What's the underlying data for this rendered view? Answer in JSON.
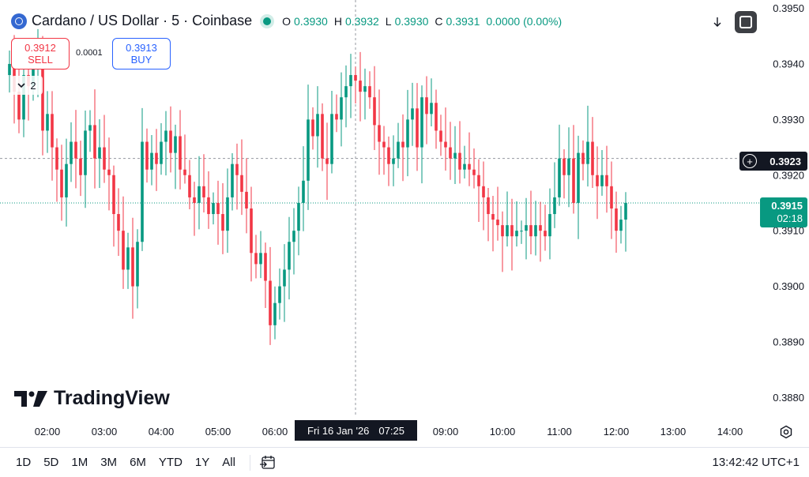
{
  "legend": {
    "title": "Cardano / US Dollar · 5 · Coinbase",
    "open_key": "O",
    "open": "0.3930",
    "high_key": "H",
    "high": "0.3932",
    "low_key": "L",
    "low": "0.3930",
    "close_key": "C",
    "close": "0.3931",
    "change": "0.0000 (0.00%)"
  },
  "trade": {
    "sell_price": "0.3912",
    "sell_label": "SELL",
    "buy_price": "0.3913",
    "buy_label": "BUY",
    "spread": "0.0001"
  },
  "collapse_count": "2",
  "crosshair": {
    "price": "0.3923",
    "time_date": "Fri 16 Jan '26",
    "time_clock": "07:25"
  },
  "last_price": {
    "price": "0.3915",
    "countdown": "02:18"
  },
  "watermark": "TradingView",
  "ranges": [
    "1D",
    "5D",
    "1M",
    "3M",
    "6M",
    "YTD",
    "1Y",
    "All"
  ],
  "clock": "13:42:42 UTC+1",
  "colors": {
    "up": "#089981",
    "down": "#f23645",
    "crosshair": "#131722",
    "last_line": "#089981"
  },
  "chart_data": {
    "type": "candlestick",
    "y_ticks": [
      "0.3950",
      "0.3940",
      "0.3930",
      "0.3920",
      "0.3910",
      "0.3900",
      "0.3890",
      "0.3880"
    ],
    "x_ticks": [
      "02:00",
      "03:00",
      "04:00",
      "05:00",
      "06:00",
      "09:00",
      "10:00",
      "11:00",
      "12:00",
      "13:00",
      "14:00"
    ],
    "ylim": [
      0.38765,
      0.39515
    ],
    "interval_minutes": 5,
    "first_candle_time": "01:20",
    "last_price": 0.3915,
    "crosshair_price": 0.3923,
    "grid": false,
    "candles_close": [
      0.394,
      0.3935,
      0.393,
      0.3938,
      0.3936,
      0.3939,
      0.3941,
      0.3928,
      0.3931,
      0.3925,
      0.3921,
      0.3916,
      0.3922,
      0.3926,
      0.3923,
      0.392,
      0.3928,
      0.3929,
      0.3923,
      0.3925,
      0.3921,
      0.392,
      0.3913,
      0.391,
      0.3903,
      0.3907,
      0.39,
      0.3908,
      0.3926,
      0.3921,
      0.3924,
      0.3922,
      0.3926,
      0.3928,
      0.3924,
      0.3927,
      0.3921,
      0.392,
      0.3916,
      0.3915,
      0.3918,
      0.3916,
      0.3913,
      0.3915,
      0.3913,
      0.391,
      0.3916,
      0.3922,
      0.392,
      0.3917,
      0.3914,
      0.3906,
      0.3904,
      0.3906,
      0.3901,
      0.3893,
      0.3897,
      0.39,
      0.3903,
      0.3908,
      0.391,
      0.3915,
      0.3919,
      0.393,
      0.3927,
      0.3931,
      0.3923,
      0.3922,
      0.3931,
      0.393,
      0.3934,
      0.3936,
      0.3938,
      0.3937,
      0.3935,
      0.3936,
      0.3934,
      0.3929,
      0.3926,
      0.3925,
      0.3922,
      0.3923,
      0.3926,
      0.3925,
      0.393,
      0.3932,
      0.3925,
      0.3934,
      0.3931,
      0.3933,
      0.3928,
      0.3926,
      0.3925,
      0.3923,
      0.3924,
      0.3921,
      0.3922,
      0.3921,
      0.392,
      0.3918,
      0.3916,
      0.3913,
      0.3912,
      0.3911,
      0.3909,
      0.3911,
      0.3909,
      0.391,
      0.391,
      0.3911,
      0.3909,
      0.3911,
      0.391,
      0.3909,
      0.3913,
      0.3916,
      0.3923,
      0.392,
      0.3923,
      0.3915,
      0.3924,
      0.3922,
      0.3926,
      0.392,
      0.3918,
      0.392,
      0.3918,
      0.3914,
      0.391,
      0.3912,
      0.3915
    ]
  }
}
